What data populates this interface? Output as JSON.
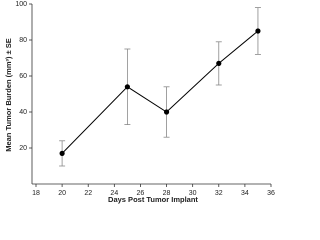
{
  "chart_data": {
    "type": "line",
    "x_label": "Days Post Tumor Implant",
    "y_label": "Mean Tumor Burden (mm³) ± SE",
    "x": [
      20,
      25,
      28,
      32,
      35
    ],
    "values": [
      17,
      54,
      40,
      67,
      85
    ],
    "errors": [
      7,
      21,
      14,
      12,
      13
    ],
    "color": "#000000",
    "error_color": "#888888",
    "xlim": [
      18,
      36
    ],
    "xticks": [
      18,
      20,
      22,
      24,
      26,
      28,
      30,
      32,
      34,
      36
    ],
    "ylim": [
      0,
      100
    ],
    "yticks": [
      20,
      40,
      60,
      80,
      100
    ]
  }
}
